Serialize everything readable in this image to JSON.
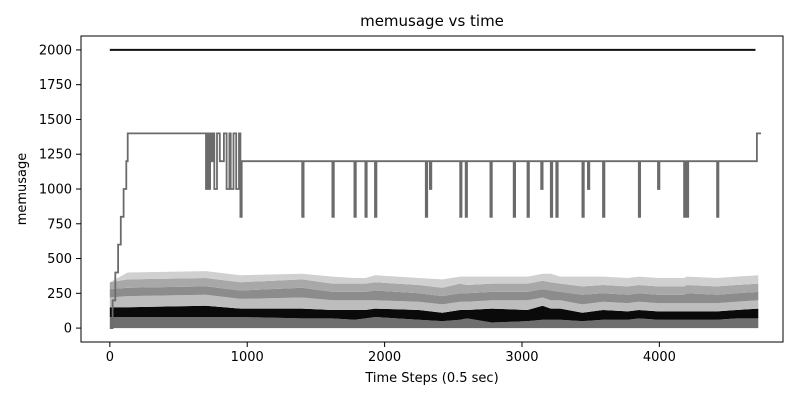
{
  "chart_data": {
    "type": "area",
    "title": "memusage vs time",
    "xlabel": "Time Steps (0.5 sec)",
    "ylabel": "memusage",
    "xlim": [
      -210,
      4900
    ],
    "ylim": [
      -100,
      2100
    ],
    "xticks": [
      0,
      1000,
      2000,
      3000,
      4000
    ],
    "yticks": [
      0,
      250,
      500,
      750,
      1000,
      1250,
      1500,
      1750,
      2000
    ],
    "grid": false,
    "legend": "none",
    "series": [
      {
        "kind": "line",
        "color": "#111111",
        "x": [
          0,
          4700
        ],
        "y": [
          2000,
          2000
        ]
      },
      {
        "kind": "step",
        "color": "#6b6b6b",
        "x": [
          0,
          20,
          40,
          60,
          80,
          100,
          120,
          130,
          700,
          710,
          720,
          730,
          740,
          750,
          760,
          780,
          800,
          830,
          850,
          870,
          880,
          900,
          920,
          940,
          950,
          960,
          1400,
          1410,
          1620,
          1630,
          1780,
          1790,
          1860,
          1870,
          1930,
          1940,
          2300,
          2310,
          2330,
          2340,
          2550,
          2560,
          2590,
          2600,
          2770,
          2780,
          2940,
          2950,
          3040,
          3050,
          3140,
          3150,
          3210,
          3220,
          3250,
          3260,
          3440,
          3450,
          3480,
          3490,
          3590,
          3600,
          3850,
          3860,
          3990,
          4000,
          4180,
          4190,
          4200,
          4210,
          4420,
          4430,
          4700,
          4710,
          4740
        ],
        "y": [
          0,
          200,
          400,
          600,
          800,
          1000,
          1200,
          1400,
          1000,
          1400,
          1000,
          1400,
          1200,
          1400,
          1000,
          1400,
          1200,
          1400,
          1000,
          1400,
          1000,
          1400,
          1000,
          1400,
          800,
          1200,
          800,
          1200,
          800,
          1200,
          800,
          1200,
          800,
          1200,
          800,
          1200,
          800,
          1200,
          1000,
          1200,
          800,
          1200,
          800,
          1200,
          800,
          1200,
          800,
          1200,
          800,
          1200,
          1000,
          1200,
          800,
          1200,
          800,
          1200,
          800,
          1200,
          1000,
          1200,
          800,
          1200,
          800,
          1200,
          1000,
          1200,
          800,
          1200,
          800,
          1200,
          800,
          1200,
          1200,
          1400,
          1400
        ]
      }
    ],
    "stacked_area": {
      "x": [
        0,
        130,
        700,
        950,
        1400,
        1620,
        1780,
        1860,
        1930,
        2250,
        2420,
        2550,
        2600,
        2780,
        3040,
        3150,
        3210,
        3280,
        3440,
        3590,
        3770,
        3850,
        3990,
        4180,
        4200,
        4420,
        4560,
        4720
      ],
      "layers": [
        {
          "color": "#6e6e6e",
          "values": [
            80,
            80,
            80,
            80,
            70,
            70,
            60,
            70,
            80,
            60,
            50,
            60,
            70,
            40,
            50,
            60,
            60,
            60,
            50,
            60,
            60,
            70,
            60,
            60,
            60,
            60,
            70,
            70
          ]
        },
        {
          "color": "#0a0a0a",
          "values": [
            70,
            70,
            80,
            60,
            70,
            60,
            70,
            60,
            60,
            70,
            60,
            70,
            60,
            100,
            80,
            100,
            80,
            80,
            60,
            70,
            60,
            60,
            60,
            60,
            60,
            60,
            60,
            70
          ]
        },
        {
          "color": "#bdbdbd",
          "values": [
            70,
            80,
            80,
            70,
            80,
            70,
            70,
            70,
            60,
            60,
            60,
            60,
            60,
            60,
            70,
            60,
            60,
            60,
            60,
            60,
            60,
            60,
            60,
            60,
            60,
            60,
            60,
            60
          ]
        },
        {
          "color": "#8c8c8c",
          "values": [
            60,
            60,
            60,
            60,
            70,
            60,
            60,
            60,
            70,
            60,
            60,
            60,
            60,
            60,
            60,
            60,
            70,
            60,
            70,
            60,
            60,
            60,
            60,
            60,
            70,
            60,
            60,
            60
          ]
        },
        {
          "color": "#a8a8a8",
          "values": [
            50,
            60,
            60,
            60,
            60,
            60,
            60,
            60,
            60,
            60,
            60,
            70,
            60,
            60,
            60,
            60,
            60,
            60,
            60,
            60,
            60,
            60,
            60,
            60,
            60,
            60,
            60,
            60
          ]
        },
        {
          "color": "#d0d0d0",
          "values": [
            0,
            50,
            50,
            50,
            40,
            50,
            40,
            40,
            50,
            50,
            60,
            50,
            60,
            50,
            50,
            50,
            60,
            50,
            70,
            60,
            60,
            60,
            60,
            60,
            60,
            60,
            60,
            60
          ]
        }
      ]
    }
  }
}
